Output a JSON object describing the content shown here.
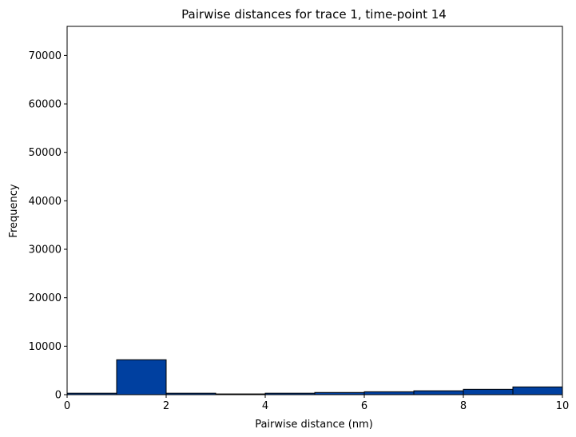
{
  "chart_data": {
    "type": "bar",
    "title": "Pairwise distances for trace 1, time-point 14",
    "xlabel": "Pairwise distance (nm)",
    "ylabel": "Frequency",
    "xlim": [
      0,
      10
    ],
    "ylim": [
      0,
      76000
    ],
    "xticks": [
      0,
      2,
      4,
      6,
      8,
      10
    ],
    "yticks": [
      0,
      10000,
      20000,
      30000,
      40000,
      50000,
      60000,
      70000
    ],
    "bins": [
      {
        "x0": 0,
        "x1": 1,
        "count": 300
      },
      {
        "x0": 1,
        "x1": 2,
        "count": 7200
      },
      {
        "x0": 2,
        "x1": 3,
        "count": 300
      },
      {
        "x0": 3,
        "x1": 4,
        "count": 150
      },
      {
        "x0": 4,
        "x1": 5,
        "count": 300
      },
      {
        "x0": 5,
        "x1": 6,
        "count": 450
      },
      {
        "x0": 6,
        "x1": 7,
        "count": 600
      },
      {
        "x0": 7,
        "x1": 8,
        "count": 800
      },
      {
        "x0": 8,
        "x1": 9,
        "count": 1100
      },
      {
        "x0": 9,
        "x1": 10,
        "count": 1600
      }
    ],
    "bar_color": "#0040a0",
    "edge_color": "#000000",
    "grid": false,
    "legend": "none"
  }
}
